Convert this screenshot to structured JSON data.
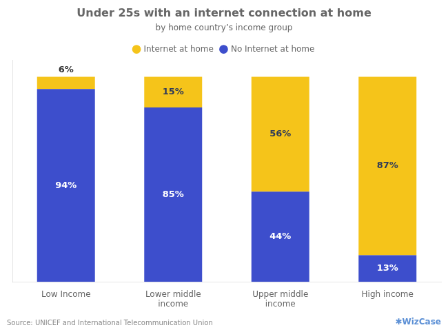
{
  "chart_data": {
    "type": "bar",
    "title": "Under 25s with an internet connection at home",
    "subtitle": "by home country’s income group",
    "categories": [
      "Low Income",
      "Lower middle\nincome",
      "Upper middle\nincome",
      "High income"
    ],
    "series": [
      {
        "name": "No Internet at home",
        "color": "#3D4ECC",
        "values": [
          94,
          85,
          44,
          13
        ],
        "value_labels": [
          "94%",
          "85%",
          "44%",
          "13%"
        ]
      },
      {
        "name": "Internet at home",
        "color": "#F5C41A",
        "values": [
          6,
          15,
          56,
          87
        ],
        "value_labels": [
          "6%",
          "15%",
          "56%",
          "87%"
        ]
      }
    ],
    "stacked": true,
    "ylim": [
      0,
      108
    ],
    "data_labels": true,
    "tick_labels": "x",
    "grid": false,
    "legend": "top",
    "annotations": [
      "Source: UNICEF and International Telecommunication Union",
      "✱WizCase"
    ]
  }
}
